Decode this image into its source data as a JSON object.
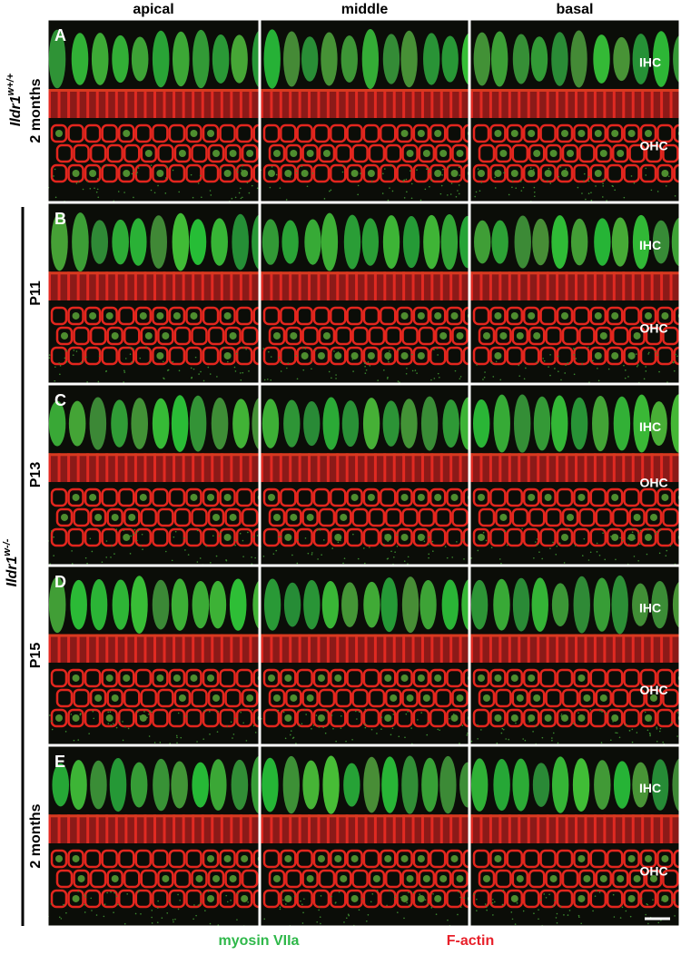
{
  "columns": [
    "apical",
    "middle",
    "basal"
  ],
  "genotypes": [
    {
      "gene": "Ildr1",
      "allele": "w+/+"
    },
    {
      "gene": "Ildr1",
      "allele": "w-/-"
    }
  ],
  "rows": [
    {
      "letter": "A",
      "age": "2 months",
      "ihc": "IHC",
      "ohc": "OHC"
    },
    {
      "letter": "B",
      "age": "P11",
      "ihc": "IHC",
      "ohc": "OHC"
    },
    {
      "letter": "C",
      "age": "P13",
      "ihc": "IHC",
      "ohc": "OHC"
    },
    {
      "letter": "D",
      "age": "P15",
      "ihc": "IHC",
      "ohc": "OHC"
    },
    {
      "letter": "E",
      "age": "2 months",
      "ihc": "IHC",
      "ohc": "OHC"
    }
  ],
  "legend": [
    "myosin VIIa",
    "F-actin"
  ]
}
